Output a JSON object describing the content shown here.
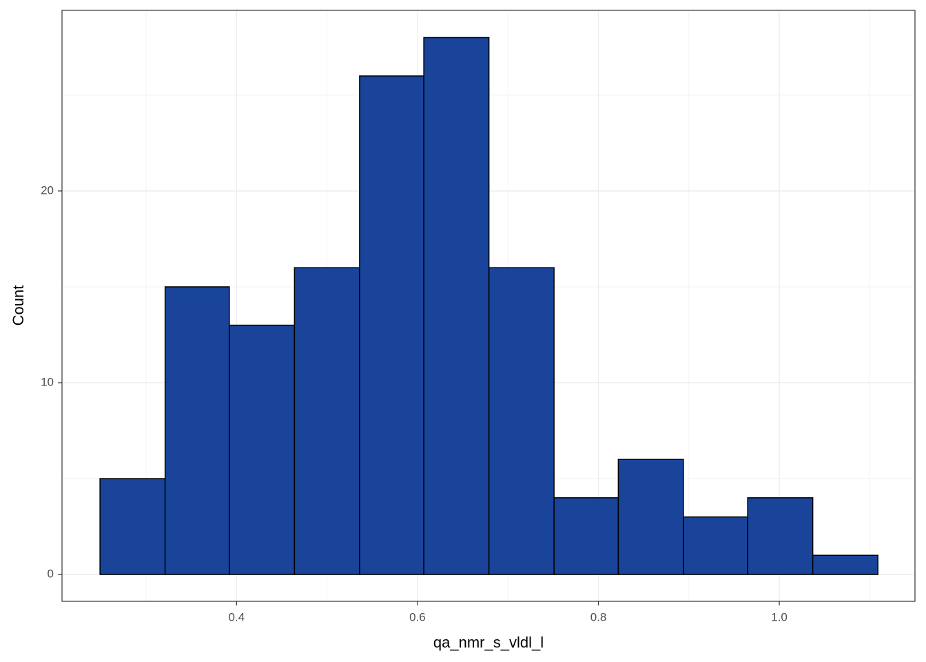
{
  "chart_data": {
    "type": "histogram",
    "x_label": "qa_nmr_s_vldl_l",
    "y_label": "Count",
    "bins": [
      0.249,
      0.321,
      0.392,
      0.464,
      0.536,
      0.607,
      0.679,
      0.751,
      0.822,
      0.894,
      0.965,
      1.037,
      1.109
    ],
    "values": [
      5,
      15,
      13,
      16,
      26,
      28,
      16,
      4,
      6,
      3,
      4,
      1
    ],
    "color": "#19449a",
    "edge_color": "#000000",
    "xlim": [
      0.207,
      1.15
    ],
    "ylim": [
      -1.4,
      29.42
    ],
    "xticks": [
      0.4,
      0.6,
      0.8,
      {
        "value": 1,
        "label": "1.0"
      }
    ],
    "yticks": [
      0,
      10,
      20
    ],
    "minor_xticks": [
      0.3,
      0.5,
      0.7,
      0.9,
      1.1
    ],
    "minor_yticks": [
      5,
      15,
      25
    ],
    "grid": true
  }
}
